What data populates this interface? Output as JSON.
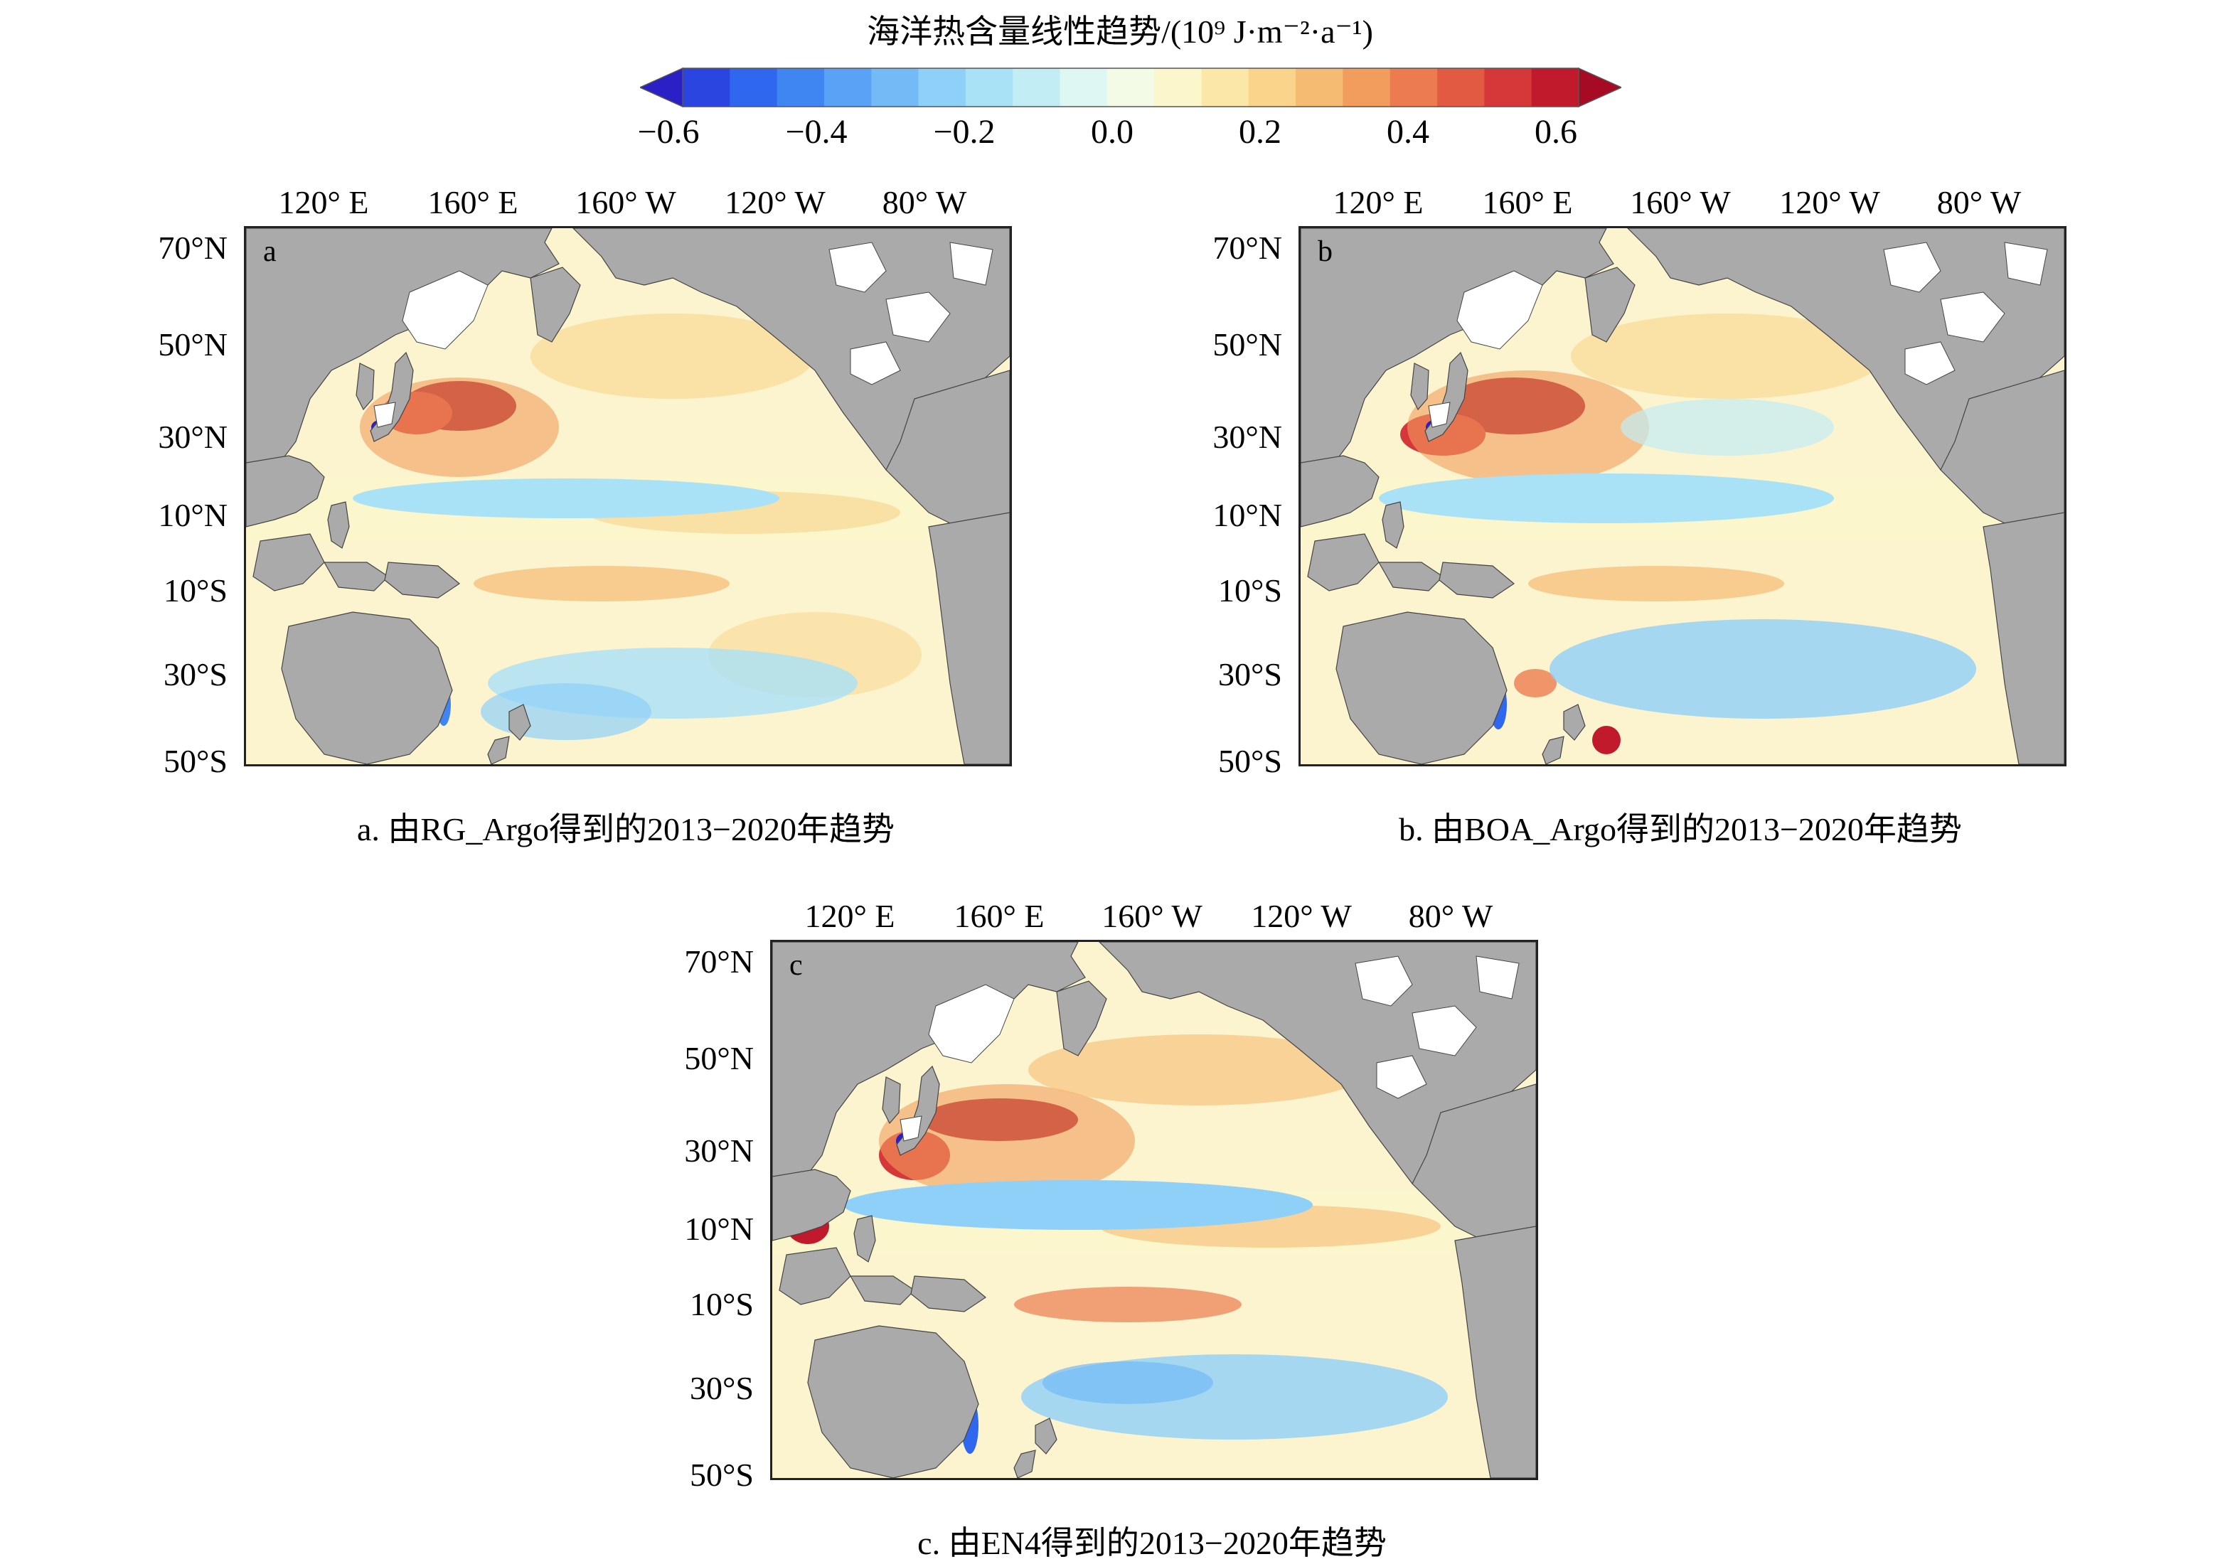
{
  "colorbar": {
    "title": "海洋热含量线性趋势/(10⁹ J·m⁻²·a⁻¹)",
    "ticks": [
      "−0.6",
      "−0.4",
      "−0.2",
      "0.0",
      "0.2",
      "0.4",
      "0.6"
    ],
    "range": [
      -0.6,
      0.6
    ],
    "colors": [
      "#2b1fc6",
      "#2a45e0",
      "#2f67ee",
      "#3f86f3",
      "#5aa2f5",
      "#74baf7",
      "#8fd0f8",
      "#a9e1f7",
      "#c3edf5",
      "#dff7f3",
      "#f3fbe6",
      "#fbf6cc",
      "#fbe8a8",
      "#f9d48a",
      "#f6bb72",
      "#f29c5e",
      "#ec7c4f",
      "#e35a43",
      "#d6383a",
      "#c21a2d",
      "#a60b23"
    ]
  },
  "axes": {
    "lon_labels": [
      "120° E",
      "160° E",
      "160° W",
      "120° W",
      "80° W"
    ],
    "lat_labels": [
      "70°N",
      "50°N",
      "30°N",
      "10°N",
      "10°S",
      "30°S",
      "50°S"
    ]
  },
  "panels": [
    {
      "letter": "a",
      "caption": "a. 由RG_Argo得到的2013−2020年趋势"
    },
    {
      "letter": "b",
      "caption": "b. 由BOA_Argo得到的2013−2020年趋势"
    },
    {
      "letter": "c",
      "caption": "c. 由EN4得到的2013−2020年趋势"
    }
  ],
  "colors": {
    "land": "#aaaaaa",
    "frame": "#222222"
  }
}
